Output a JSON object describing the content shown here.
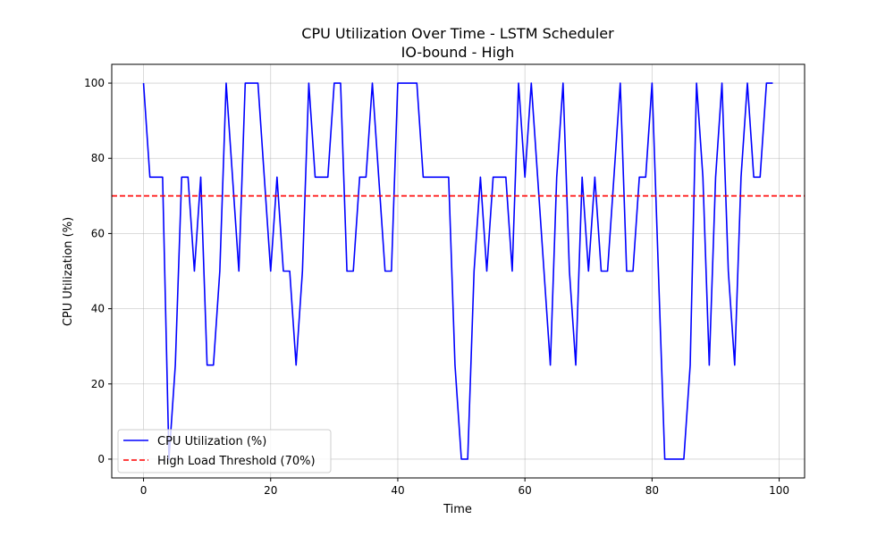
{
  "chart_data": {
    "type": "line",
    "title": "CPU Utilization Over Time - LSTM Scheduler",
    "subtitle": "IO-bound - High",
    "xlabel": "Time",
    "ylabel": "CPU Utilization (%)",
    "xlim": [
      -5,
      104
    ],
    "ylim": [
      -5,
      105
    ],
    "xticks": [
      0,
      20,
      40,
      60,
      80,
      100
    ],
    "yticks": [
      0,
      20,
      40,
      60,
      80,
      100
    ],
    "grid": true,
    "legend_position": "lower-left",
    "series": [
      {
        "name": "CPU Utilization (%)",
        "color": "#0000ff",
        "style": "solid",
        "x": [
          0,
          1,
          2,
          3,
          4,
          5,
          6,
          7,
          8,
          9,
          10,
          11,
          12,
          13,
          14,
          15,
          16,
          17,
          18,
          19,
          20,
          21,
          22,
          23,
          24,
          25,
          26,
          27,
          28,
          29,
          30,
          31,
          32,
          33,
          34,
          35,
          36,
          37,
          38,
          39,
          40,
          41,
          42,
          43,
          44,
          45,
          46,
          47,
          48,
          49,
          50,
          51,
          52,
          53,
          54,
          55,
          56,
          57,
          58,
          59,
          60,
          61,
          62,
          63,
          64,
          65,
          66,
          67,
          68,
          69,
          70,
          71,
          72,
          73,
          74,
          75,
          76,
          77,
          78,
          79,
          80,
          81,
          82,
          83,
          84,
          85,
          86,
          87,
          88,
          89,
          90,
          91,
          92,
          93,
          94,
          95,
          96,
          97,
          98,
          99
        ],
        "values": [
          100,
          75,
          75,
          75,
          0,
          25,
          75,
          75,
          50,
          75,
          25,
          25,
          50,
          100,
          75,
          50,
          100,
          100,
          100,
          75,
          50,
          75,
          50,
          50,
          25,
          50,
          100,
          75,
          75,
          75,
          100,
          100,
          50,
          50,
          75,
          75,
          100,
          75,
          50,
          50,
          100,
          100,
          100,
          100,
          75,
          75,
          75,
          75,
          75,
          25,
          0,
          0,
          50,
          75,
          50,
          75,
          75,
          75,
          50,
          100,
          75,
          100,
          75,
          50,
          25,
          75,
          100,
          50,
          25,
          75,
          50,
          75,
          50,
          50,
          75,
          100,
          50,
          50,
          75,
          75,
          100,
          50,
          0,
          0,
          0,
          0,
          25,
          100,
          75,
          25,
          75,
          100,
          50,
          25,
          75,
          100,
          75,
          75,
          100,
          100
        ]
      },
      {
        "name": "High Load Threshold (70%)",
        "color": "#ff0000",
        "style": "dashed",
        "y": 70
      }
    ]
  }
}
